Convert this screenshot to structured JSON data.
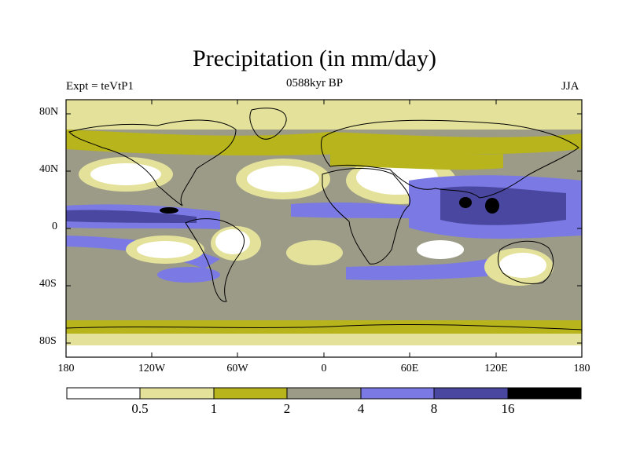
{
  "title": "Precipitation (in mm/day)",
  "left_label": "Expt = teVtP1",
  "center_label": "0588kyr BP",
  "right_label": "JJA",
  "lat_ticks": [
    "80N",
    "40N",
    "0",
    "40S",
    "80S"
  ],
  "lon_ticks": [
    "180",
    "120W",
    "60W",
    "0",
    "60E",
    "120E",
    "180"
  ],
  "colorbar": {
    "levels": [
      "0.5",
      "1",
      "2",
      "4",
      "8",
      "16"
    ],
    "colors": [
      "#ffffff",
      "#e4e29a",
      "#b7b41c",
      "#9c9b88",
      "#7b79e4",
      "#4a47a0",
      "#000000"
    ]
  },
  "land_color": "#ffffff",
  "outline_color": "#000000"
}
